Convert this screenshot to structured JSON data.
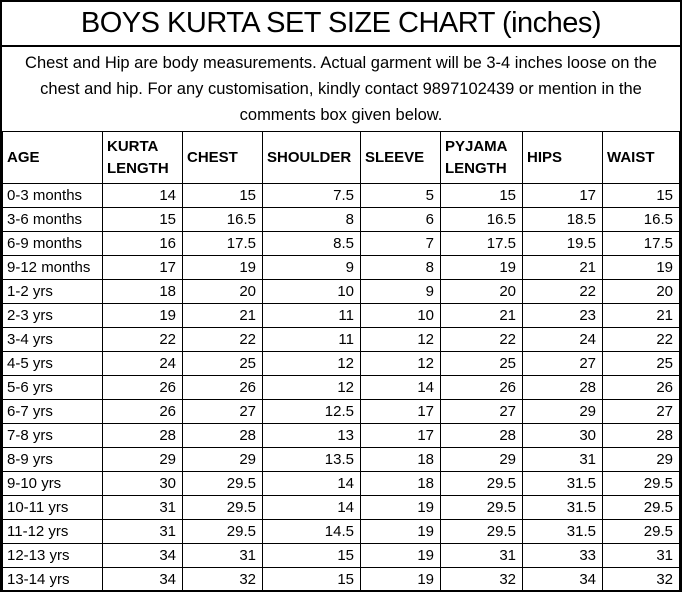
{
  "title": "BOYS KURTA SET SIZE CHART (inches)",
  "note": "Chest and Hip are body measurements. Actual garment will be 3-4 inches loose on the chest and hip. For any customisation, kindly contact 9897102439 or mention in the comments box given below.",
  "colors": {
    "background": "#ffffff",
    "text": "#000000",
    "border": "#000000"
  },
  "chart_data": {
    "type": "table",
    "title": "BOYS KURTA SET SIZE CHART (inches)",
    "unit": "inches",
    "columns": [
      "AGE",
      "KURTA LENGTH",
      "CHEST",
      "SHOULDER",
      "SLEEVE",
      "PYJAMA LENGTH",
      "HIPS",
      "WAIST"
    ],
    "rows": [
      [
        "0-3 months",
        14,
        15,
        7.5,
        5,
        15,
        17,
        15
      ],
      [
        "3-6 months",
        15,
        16.5,
        8,
        6,
        16.5,
        18.5,
        16.5
      ],
      [
        "6-9 months",
        16,
        17.5,
        8.5,
        7,
        17.5,
        19.5,
        17.5
      ],
      [
        "9-12 months",
        17,
        19,
        9,
        8,
        19,
        21,
        19
      ],
      [
        "1-2 yrs",
        18,
        20,
        10,
        9,
        20,
        22,
        20
      ],
      [
        "2-3 yrs",
        19,
        21,
        11,
        10,
        21,
        23,
        21
      ],
      [
        "3-4 yrs",
        22,
        22,
        11,
        12,
        22,
        24,
        22
      ],
      [
        "4-5 yrs",
        24,
        25,
        12,
        12,
        25,
        27,
        25
      ],
      [
        "5-6 yrs",
        26,
        26,
        12,
        14,
        26,
        28,
        26
      ],
      [
        "6-7 yrs",
        26,
        27,
        12.5,
        17,
        27,
        29,
        27
      ],
      [
        "7-8 yrs",
        28,
        28,
        13,
        17,
        28,
        30,
        28
      ],
      [
        "8-9 yrs",
        29,
        29,
        13.5,
        18,
        29,
        31,
        29
      ],
      [
        "9-10 yrs",
        30,
        29.5,
        14,
        18,
        29.5,
        31.5,
        29.5
      ],
      [
        "10-11 yrs",
        31,
        29.5,
        14,
        19,
        29.5,
        31.5,
        29.5
      ],
      [
        "11-12 yrs",
        31,
        29.5,
        14.5,
        19,
        29.5,
        31.5,
        29.5
      ],
      [
        "12-13 yrs",
        34,
        31,
        15,
        19,
        31,
        33,
        31
      ],
      [
        "13-14 yrs",
        34,
        32,
        15,
        19,
        32,
        34,
        32
      ]
    ]
  }
}
